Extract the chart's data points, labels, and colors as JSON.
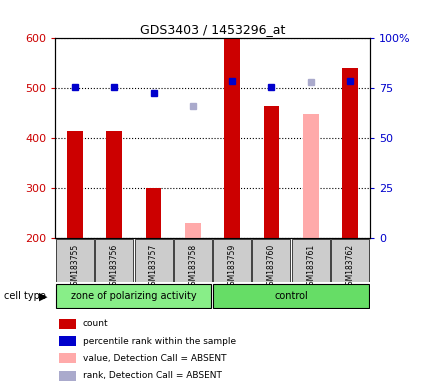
{
  "title": "GDS3403 / 1453296_at",
  "samples": [
    "GSM183755",
    "GSM183756",
    "GSM183757",
    "GSM183758",
    "GSM183759",
    "GSM183760",
    "GSM183761",
    "GSM183762"
  ],
  "groups": [
    "zone of polarizing activity",
    "zone of polarizing activity",
    "zone of polarizing activity",
    "zone of polarizing activity",
    "control",
    "control",
    "control",
    "control"
  ],
  "count_values": [
    415,
    415,
    300,
    null,
    600,
    465,
    null,
    540
  ],
  "count_absent_values": [
    null,
    null,
    null,
    230,
    null,
    null,
    448,
    null
  ],
  "percentile_present": [
    503,
    503,
    490,
    null,
    515,
    503,
    null,
    515
  ],
  "percentile_absent": [
    null,
    null,
    null,
    465,
    null,
    null,
    512,
    null
  ],
  "y_min": 200,
  "y_max": 600,
  "y_ticks": [
    200,
    300,
    400,
    500,
    600
  ],
  "y2_ticks": [
    0,
    25,
    50,
    75,
    100
  ],
  "y2_labels": [
    "0",
    "25",
    "50",
    "75",
    "100%"
  ],
  "bar_width": 0.4,
  "count_color": "#cc0000",
  "count_absent_color": "#ffaaaa",
  "percentile_color": "#0000cc",
  "percentile_absent_color": "#aaaacc",
  "group1_color": "#88ee88",
  "group2_color": "#66dd66",
  "tick_label_color": "#cc0000",
  "y2_label_color": "#0000cc",
  "bg_color": "#cccccc",
  "plot_bg": "#ffffff"
}
